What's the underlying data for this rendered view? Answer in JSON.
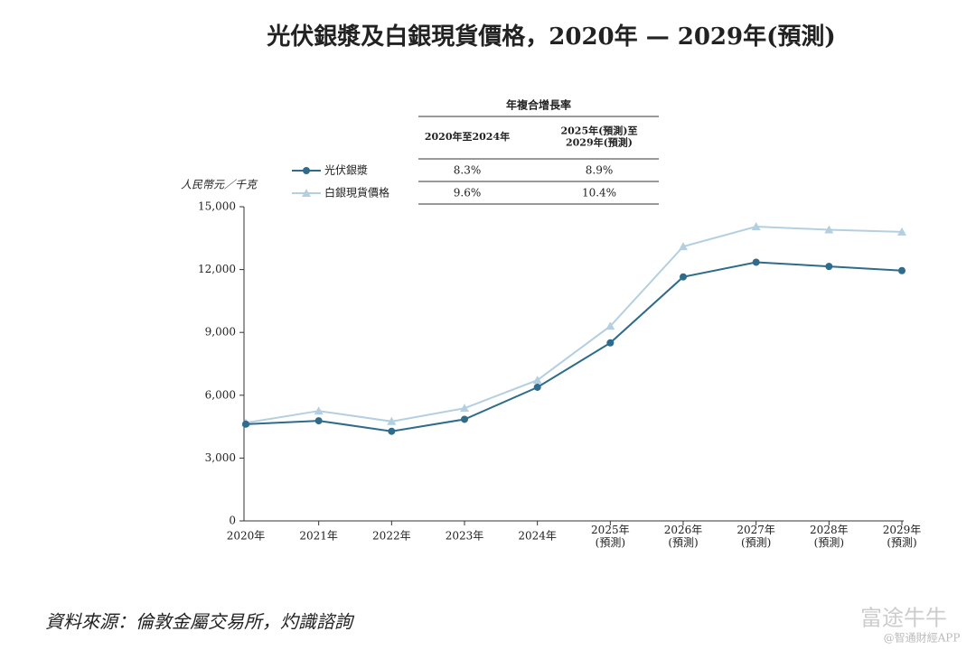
{
  "chart_data": {
    "type": "line",
    "title": "光伏銀漿及白銀現貨價格，2020年 — 2029年(預測)",
    "y_label": "人民幣元／千克",
    "categories": [
      "2020年",
      "2021年",
      "2022年",
      "2023年",
      "2024年",
      "2025年\n(預測)",
      "2026年\n(預測)",
      "2027年\n(預測)",
      "2028年\n(預測)",
      "2029年\n(預測)"
    ],
    "series": [
      {
        "name": "光伏銀漿",
        "color": "#2f6b8a",
        "marker": "circle",
        "values": [
          4620,
          4780,
          4280,
          4850,
          6380,
          8500,
          11650,
          12350,
          12150,
          11950
        ]
      },
      {
        "name": "白銀現貨價格",
        "color": "#b4cfe0",
        "marker": "triangle",
        "values": [
          4680,
          5250,
          4750,
          5380,
          6720,
          9300,
          13100,
          14050,
          13900,
          13800
        ]
      }
    ],
    "ylim": [
      0,
      15000
    ],
    "yticks": [
      0,
      {
        "value": 3000,
        "label": "3,000"
      },
      {
        "value": 6000,
        "label": "6,000"
      },
      {
        "value": 9000,
        "label": "9,000"
      },
      {
        "value": 12000,
        "label": "12,000"
      },
      {
        "value": 15000,
        "label": "15,000"
      }
    ],
    "cagr_table": {
      "title": "年複合增長率",
      "columns": [
        "2020年至2024年",
        "2025年(預測)至\n2029年(預測)"
      ],
      "rows": [
        [
          "8.3%",
          "8.9%"
        ],
        [
          "9.6%",
          "10.4%"
        ]
      ]
    },
    "source": "資料來源：倫敦金屬交易所，灼識諮詢",
    "watermark": [
      "富途牛牛",
      "@智通財經APP"
    ]
  }
}
